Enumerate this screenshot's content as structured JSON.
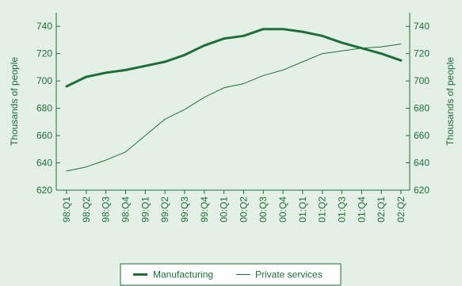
{
  "chart_data": {
    "type": "line",
    "title": "",
    "xlabel": "",
    "ylabel": "Thousands of people",
    "ylabel_right": "Thousands of people",
    "ylim": [
      620,
      750
    ],
    "yticks": [
      620,
      640,
      660,
      680,
      700,
      720,
      740
    ],
    "categories": [
      "98:Q1",
      "98:Q2",
      "98:Q3",
      "98:Q4",
      "99:Q1",
      "99:Q2",
      "99:Q3",
      "99:Q4",
      "00:Q1",
      "00:Q2",
      "00:Q3",
      "00:Q4",
      "01:Q1",
      "01:Q2",
      "01:Q3",
      "01:Q4",
      "02:Q1",
      "02:Q2"
    ],
    "series": [
      {
        "name": "Manufacturing",
        "values": [
          696,
          703,
          706,
          708,
          711,
          714,
          719,
          726,
          731,
          733,
          738,
          738,
          736,
          733,
          728,
          724,
          720,
          715
        ]
      },
      {
        "name": "Private services",
        "values": [
          634,
          637,
          642,
          648,
          660,
          672,
          679,
          688,
          695,
          698,
          704,
          708,
          714,
          720,
          722,
          724,
          725,
          727
        ]
      }
    ],
    "grid": false,
    "legend": "bottom"
  },
  "colors": {
    "background": "#e4f0e6",
    "line": "#1f6d3a",
    "axis": "#1f6d3a",
    "legend_bg": "#ffffff"
  }
}
